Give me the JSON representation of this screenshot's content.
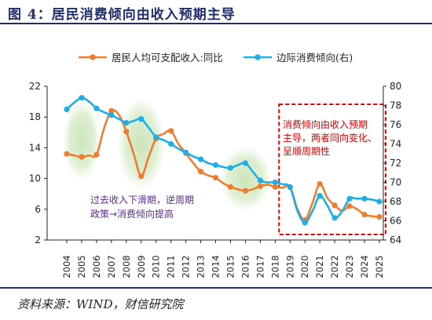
{
  "header": {
    "title": "图 4：居民消费倾向由收入预期主导"
  },
  "footer": {
    "source": "资料来源：WIND，财信研究院"
  },
  "chart_data": {
    "type": "line",
    "categories": [
      "2004",
      "2005",
      "2006",
      "2007",
      "2008",
      "2009",
      "2010",
      "2011",
      "2012",
      "2013",
      "2014",
      "2015",
      "2016",
      "2017",
      "2018",
      "2019",
      "2020",
      "2021",
      "2022",
      "2023",
      "2024",
      "2025"
    ],
    "x": [
      2004,
      2004.5,
      2005,
      2005.5,
      2006,
      2006.5,
      2007,
      2007.5,
      2008,
      2008.5,
      2009,
      2009.5,
      2010,
      2010.5,
      2011,
      2011.5,
      2012,
      2012.5,
      2013,
      2013.5,
      2014,
      2014.5,
      2015,
      2015.5,
      2016,
      2016.5,
      2017,
      2017.5,
      2018,
      2018.5,
      2019,
      2019.5,
      2020,
      2020.5,
      2021,
      2021.5,
      2022,
      2022.5,
      2023,
      2023.5,
      2024,
      2024.5,
      2025
    ],
    "series": [
      {
        "name": "居民人均可支配收入:同比",
        "axis": "left",
        "color": "#ed7d31",
        "marker_every": 2,
        "values": [
          13.2,
          13.0,
          12.8,
          13.0,
          13.1,
          16.5,
          18.8,
          18.3,
          16.1,
          13.2,
          10.3,
          12.8,
          15.2,
          15.8,
          16.2,
          14.5,
          13.3,
          12.0,
          10.9,
          10.4,
          10.1,
          9.4,
          8.9,
          8.6,
          8.4,
          8.6,
          9.0,
          9.2,
          8.9,
          8.8,
          8.9,
          6.0,
          4.6,
          6.8,
          9.3,
          7.5,
          6.5,
          5.8,
          6.4,
          6.0,
          5.3,
          5.1,
          5.0
        ]
      },
      {
        "name": "边际消费倾向(右)",
        "axis": "right",
        "color": "#1faee6",
        "marker_every": 2,
        "values": [
          77.6,
          78.3,
          78.8,
          78.4,
          77.7,
          77.3,
          77.0,
          76.6,
          76.2,
          76.4,
          76.6,
          75.7,
          74.7,
          74.4,
          74.0,
          73.5,
          73.1,
          72.7,
          72.4,
          72.0,
          71.8,
          71.6,
          71.5,
          71.8,
          72.0,
          71.1,
          70.2,
          70.0,
          70.0,
          69.8,
          69.5,
          67.0,
          65.8,
          67.0,
          68.6,
          67.6,
          66.3,
          67.0,
          68.3,
          68.3,
          68.3,
          68.2,
          68.0
        ]
      }
    ],
    "y_left": {
      "range": [
        2,
        22
      ],
      "ticks": [
        "2",
        "6",
        "10",
        "14",
        "18",
        "22"
      ]
    },
    "y_right": {
      "range": [
        64,
        80
      ],
      "ticks": [
        "64",
        "66",
        "68",
        "70",
        "72",
        "74",
        "76",
        "78",
        "80"
      ]
    },
    "legend": [
      "居民人均可支配收入:同比",
      "边际消费倾向(右)"
    ],
    "legend_position": "top",
    "annotations": {
      "left": [
        "过去收入下滑期，逆周期",
        "政策→消费倾向提高"
      ],
      "right": [
        "消费倾向由收入预期",
        "主导，两者同向变化、",
        "呈顺周期性"
      ]
    },
    "highlights": {
      "green_periods": [
        "2005",
        "2009",
        "2016"
      ],
      "red_box": [
        "2019",
        "2025"
      ]
    }
  }
}
